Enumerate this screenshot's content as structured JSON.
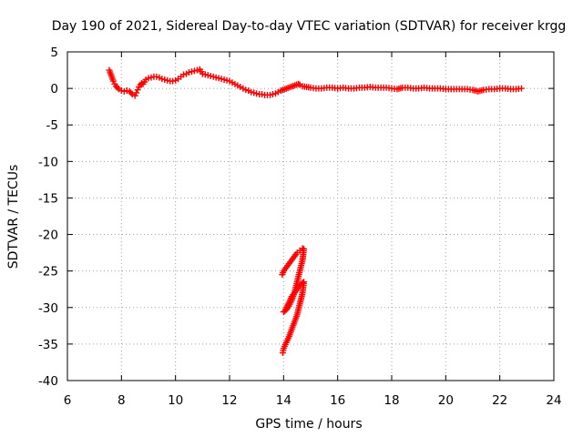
{
  "chart_data": {
    "type": "scatter",
    "title": "Day 190 of 2021, Sidereal Day-to-day VTEC variation (SDTVAR) for receiver krgg",
    "xlabel": "GPS time / hours",
    "ylabel": "SDTVAR / TECUs",
    "xlim": [
      6,
      24
    ],
    "ylim": [
      -40,
      5
    ],
    "xticks": [
      6,
      8,
      10,
      12,
      14,
      16,
      18,
      20,
      22,
      24
    ],
    "yticks": [
      5,
      0,
      -5,
      -10,
      -15,
      -20,
      -25,
      -30,
      -35,
      -40
    ],
    "xtick_labels": [
      "6",
      "8",
      "10",
      "12",
      "14",
      "16",
      "18",
      "20",
      "22",
      "24"
    ],
    "ytick_labels": [
      "5",
      "0",
      "-5",
      "-10",
      "-15",
      "-20",
      "-25",
      "-30",
      "-35",
      "-40"
    ],
    "grid": true,
    "marker": "plus",
    "series": [
      {
        "name": "SDTVAR",
        "color": "#ff0000",
        "x": [
          7.55,
          7.6,
          7.65,
          7.7,
          7.75,
          7.8,
          7.85,
          7.9,
          8.0,
          8.1,
          8.2,
          8.3,
          8.4,
          8.5,
          8.55,
          8.6,
          8.65,
          8.7,
          8.75,
          8.8,
          8.85,
          8.9,
          9.0,
          9.1,
          9.2,
          9.3,
          9.4,
          9.5,
          9.6,
          9.7,
          9.8,
          9.9,
          10.0,
          10.1,
          10.2,
          10.3,
          10.4,
          10.5,
          10.6,
          10.7,
          10.8,
          10.9,
          11.0,
          11.1,
          11.2,
          11.3,
          11.4,
          11.5,
          11.6,
          11.7,
          11.8,
          11.9,
          12.0,
          12.1,
          12.2,
          12.3,
          12.4,
          12.5,
          12.6,
          12.7,
          12.8,
          12.9,
          13.0,
          13.1,
          13.2,
          13.3,
          13.4,
          13.5,
          13.6,
          13.7,
          13.8,
          13.9,
          14.55,
          14.6,
          14.7,
          14.85,
          15.0,
          15.2,
          15.4,
          15.6,
          15.8,
          16.0,
          16.2,
          16.4,
          16.6,
          16.8,
          17.0,
          17.2,
          17.4,
          17.6,
          17.8,
          18.0,
          18.2,
          18.4,
          18.6,
          18.8,
          19.0,
          19.2,
          19.4,
          19.6,
          19.8,
          20.0,
          20.2,
          20.4,
          20.6,
          20.8,
          21.0,
          21.2,
          21.4,
          21.6,
          21.8,
          22.0,
          22.2,
          22.4,
          22.6,
          22.8,
          13.95,
          14.0,
          14.1,
          14.2,
          14.3,
          14.4,
          14.5,
          14.6,
          14.7,
          14.75,
          14.7,
          14.6,
          14.5,
          14.4,
          14.3,
          14.2,
          14.1,
          14.0,
          14.05,
          14.1,
          14.2,
          14.3,
          14.4,
          14.5,
          14.6,
          14.7,
          14.75,
          14.7,
          14.6,
          14.5,
          14.4,
          14.3,
          14.2,
          14.1,
          14.0,
          13.97
        ],
        "y": [
          2.5,
          2.0,
          1.5,
          1.0,
          0.6,
          0.3,
          0.1,
          -0.1,
          -0.3,
          -0.4,
          -0.3,
          -0.4,
          -0.8,
          -1.0,
          -0.6,
          -0.2,
          0.2,
          0.5,
          0.7,
          0.6,
          0.9,
          1.2,
          1.4,
          1.5,
          1.6,
          1.6,
          1.5,
          1.3,
          1.2,
          1.1,
          1.0,
          1.0,
          1.1,
          1.3,
          1.6,
          1.9,
          2.0,
          2.2,
          2.3,
          2.4,
          2.5,
          2.6,
          2.0,
          1.9,
          1.8,
          1.7,
          1.6,
          1.5,
          1.4,
          1.3,
          1.2,
          1.1,
          1.0,
          0.8,
          0.6,
          0.4,
          0.2,
          0.0,
          -0.2,
          -0.3,
          -0.5,
          -0.6,
          -0.7,
          -0.8,
          -0.8,
          -0.9,
          -0.9,
          -0.9,
          -0.8,
          -0.7,
          -0.5,
          -0.3,
          0.6,
          0.5,
          0.3,
          0.2,
          0.1,
          0.0,
          0.0,
          0.1,
          0.1,
          0.0,
          0.1,
          0.0,
          0.0,
          0.1,
          0.1,
          0.2,
          0.1,
          0.1,
          0.1,
          0.0,
          -0.1,
          0.1,
          0.1,
          0.0,
          0.0,
          0.1,
          0.0,
          0.0,
          0.0,
          -0.1,
          -0.1,
          -0.1,
          -0.1,
          -0.1,
          -0.2,
          -0.4,
          -0.2,
          -0.1,
          -0.1,
          0.0,
          0.0,
          -0.1,
          -0.1,
          0.0,
          -25.5,
          -25.0,
          -24.5,
          -24.0,
          -23.5,
          -23.0,
          -22.5,
          -22.2,
          -21.9,
          -22.0,
          -23.5,
          -25.0,
          -26.5,
          -28.0,
          -29.0,
          -29.8,
          -30.3,
          -30.6,
          -30.5,
          -30.0,
          -29.3,
          -28.5,
          -28.0,
          -27.5,
          -27.0,
          -26.6,
          -26.5,
          -28.0,
          -29.5,
          -31.0,
          -32.0,
          -33.0,
          -34.0,
          -34.8,
          -35.6,
          -36.2
        ]
      }
    ]
  }
}
